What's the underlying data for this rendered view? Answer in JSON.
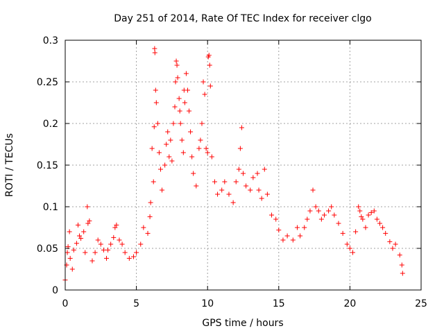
{
  "chart_data": {
    "type": "scatter",
    "title": "Day 251 of 2014, Rate Of TEC Index for receiver clgo",
    "xlabel": "GPS time / hours",
    "ylabel": "ROTI / TECUs",
    "xlim": [
      0,
      25
    ],
    "ylim": [
      0,
      0.3
    ],
    "x_ticks": [
      0,
      5,
      10,
      15,
      20,
      25
    ],
    "x_tick_labels": [
      "0",
      "5",
      "10",
      "15",
      "20",
      "25"
    ],
    "y_ticks": [
      0,
      0.05,
      0.1,
      0.15,
      0.2,
      0.25,
      0.3
    ],
    "y_tick_labels": [
      "0",
      "0.05",
      "0.1",
      "0.15",
      "0.2",
      "0.25",
      "0.3"
    ],
    "grid": true,
    "marker": "+",
    "color": "#ff0000",
    "series": [
      {
        "name": "ROTI",
        "points": [
          [
            0.0,
            0.012
          ],
          [
            0.1,
            0.03
          ],
          [
            0.15,
            0.045
          ],
          [
            0.2,
            0.052
          ],
          [
            0.3,
            0.07
          ],
          [
            0.35,
            0.038
          ],
          [
            0.5,
            0.025
          ],
          [
            0.6,
            0.048
          ],
          [
            0.8,
            0.056
          ],
          [
            0.9,
            0.078
          ],
          [
            1.0,
            0.065
          ],
          [
            1.1,
            0.062
          ],
          [
            1.3,
            0.07
          ],
          [
            1.4,
            0.045
          ],
          [
            1.55,
            0.1
          ],
          [
            1.6,
            0.08
          ],
          [
            1.7,
            0.083
          ],
          [
            1.9,
            0.035
          ],
          [
            2.1,
            0.045
          ],
          [
            2.3,
            0.06
          ],
          [
            2.5,
            0.055
          ],
          [
            2.7,
            0.048
          ],
          [
            2.9,
            0.038
          ],
          [
            3.0,
            0.048
          ],
          [
            3.2,
            0.055
          ],
          [
            3.4,
            0.063
          ],
          [
            3.5,
            0.075
          ],
          [
            3.6,
            0.078
          ],
          [
            3.8,
            0.06
          ],
          [
            4.0,
            0.055
          ],
          [
            4.2,
            0.045
          ],
          [
            4.5,
            0.038
          ],
          [
            4.8,
            0.04
          ],
          [
            5.0,
            0.045
          ],
          [
            5.3,
            0.055
          ],
          [
            5.5,
            0.075
          ],
          [
            5.8,
            0.068
          ],
          [
            5.95,
            0.088
          ],
          [
            6.0,
            0.105
          ],
          [
            6.1,
            0.17
          ],
          [
            6.2,
            0.13
          ],
          [
            6.25,
            0.196
          ],
          [
            6.28,
            0.29
          ],
          [
            6.3,
            0.285
          ],
          [
            6.35,
            0.24
          ],
          [
            6.4,
            0.225
          ],
          [
            6.5,
            0.2
          ],
          [
            6.6,
            0.165
          ],
          [
            6.7,
            0.145
          ],
          [
            6.8,
            0.12
          ],
          [
            7.0,
            0.15
          ],
          [
            7.1,
            0.175
          ],
          [
            7.2,
            0.19
          ],
          [
            7.3,
            0.16
          ],
          [
            7.4,
            0.18
          ],
          [
            7.5,
            0.155
          ],
          [
            7.6,
            0.2
          ],
          [
            7.7,
            0.22
          ],
          [
            7.75,
            0.25
          ],
          [
            7.8,
            0.275
          ],
          [
            7.85,
            0.27
          ],
          [
            7.9,
            0.255
          ],
          [
            8.0,
            0.23
          ],
          [
            8.05,
            0.215
          ],
          [
            8.1,
            0.2
          ],
          [
            8.2,
            0.18
          ],
          [
            8.3,
            0.165
          ],
          [
            8.35,
            0.24
          ],
          [
            8.4,
            0.225
          ],
          [
            8.5,
            0.26
          ],
          [
            8.6,
            0.24
          ],
          [
            8.7,
            0.215
          ],
          [
            8.8,
            0.19
          ],
          [
            8.9,
            0.16
          ],
          [
            9.0,
            0.14
          ],
          [
            9.2,
            0.125
          ],
          [
            9.4,
            0.17
          ],
          [
            9.5,
            0.18
          ],
          [
            9.6,
            0.2
          ],
          [
            9.7,
            0.25
          ],
          [
            9.8,
            0.235
          ],
          [
            9.9,
            0.17
          ],
          [
            10.0,
            0.165
          ],
          [
            10.05,
            0.28
          ],
          [
            10.1,
            0.282
          ],
          [
            10.15,
            0.27
          ],
          [
            10.2,
            0.245
          ],
          [
            10.3,
            0.16
          ],
          [
            10.5,
            0.13
          ],
          [
            10.7,
            0.115
          ],
          [
            11.0,
            0.12
          ],
          [
            11.2,
            0.13
          ],
          [
            11.5,
            0.115
          ],
          [
            11.8,
            0.105
          ],
          [
            12.0,
            0.13
          ],
          [
            12.2,
            0.145
          ],
          [
            12.3,
            0.17
          ],
          [
            12.4,
            0.195
          ],
          [
            12.5,
            0.14
          ],
          [
            12.7,
            0.125
          ],
          [
            13.0,
            0.12
          ],
          [
            13.2,
            0.135
          ],
          [
            13.5,
            0.14
          ],
          [
            13.6,
            0.12
          ],
          [
            13.8,
            0.11
          ],
          [
            14.0,
            0.145
          ],
          [
            14.2,
            0.115
          ],
          [
            14.5,
            0.09
          ],
          [
            14.8,
            0.085
          ],
          [
            15.0,
            0.072
          ],
          [
            15.3,
            0.06
          ],
          [
            15.6,
            0.065
          ],
          [
            16.0,
            0.06
          ],
          [
            16.3,
            0.075
          ],
          [
            16.5,
            0.065
          ],
          [
            16.8,
            0.075
          ],
          [
            17.0,
            0.085
          ],
          [
            17.2,
            0.095
          ],
          [
            17.4,
            0.12
          ],
          [
            17.6,
            0.1
          ],
          [
            17.8,
            0.095
          ],
          [
            18.0,
            0.085
          ],
          [
            18.2,
            0.09
          ],
          [
            18.5,
            0.095
          ],
          [
            18.7,
            0.1
          ],
          [
            18.9,
            0.09
          ],
          [
            19.2,
            0.08
          ],
          [
            19.5,
            0.068
          ],
          [
            19.8,
            0.055
          ],
          [
            20.0,
            0.05
          ],
          [
            20.2,
            0.045
          ],
          [
            20.4,
            0.07
          ],
          [
            20.6,
            0.1
          ],
          [
            20.7,
            0.095
          ],
          [
            20.8,
            0.088
          ],
          [
            20.9,
            0.085
          ],
          [
            21.1,
            0.075
          ],
          [
            21.3,
            0.09
          ],
          [
            21.5,
            0.093
          ],
          [
            21.7,
            0.095
          ],
          [
            21.9,
            0.085
          ],
          [
            22.1,
            0.08
          ],
          [
            22.3,
            0.075
          ],
          [
            22.5,
            0.068
          ],
          [
            22.8,
            0.058
          ],
          [
            23.0,
            0.05
          ],
          [
            23.2,
            0.055
          ],
          [
            23.5,
            0.042
          ],
          [
            23.65,
            0.03
          ],
          [
            23.7,
            0.02
          ]
        ]
      }
    ]
  }
}
